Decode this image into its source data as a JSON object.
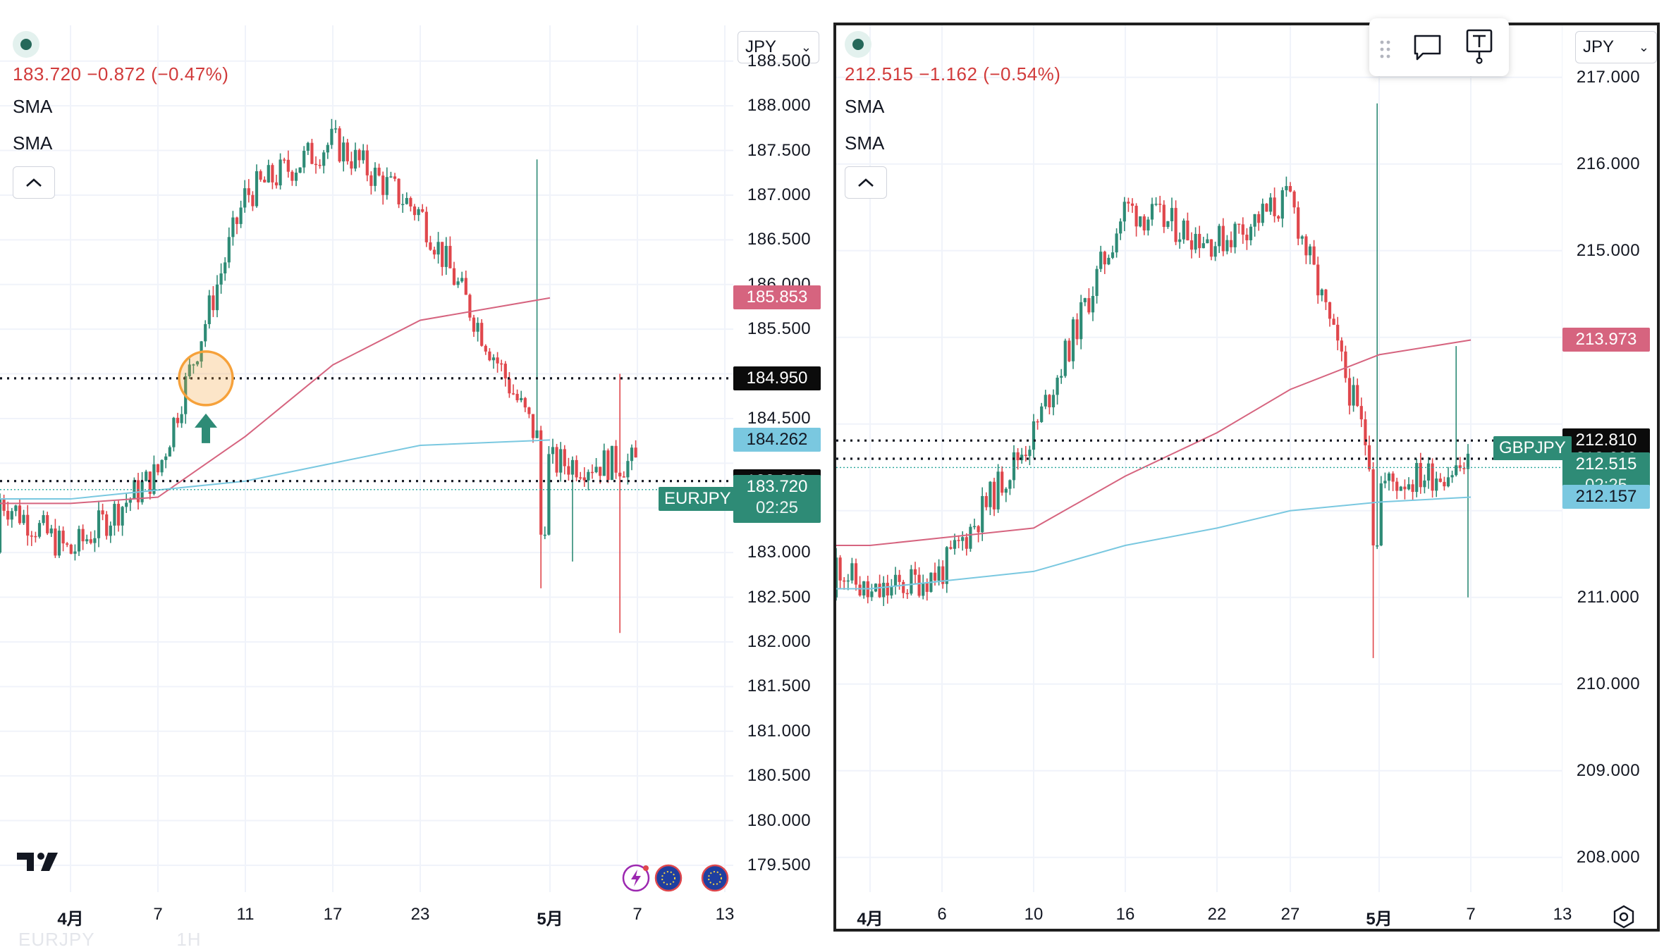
{
  "left": {
    "symbol": "EURJPY",
    "interval": "1H",
    "currency": "JPY",
    "last": "183.720",
    "change": "−0.872",
    "change_pct": "(−0.47%)",
    "indicators": [
      "SMA",
      "SMA"
    ],
    "countdown": "02:25",
    "price_ticks": [
      "188.500",
      "188.000",
      "187.500",
      "187.000",
      "186.500",
      "186.000",
      "185.500",
      "184.500",
      "183.000",
      "182.500",
      "182.000",
      "181.500",
      "181.000",
      "180.500",
      "180.000",
      "179.500"
    ],
    "badges": {
      "sma_red": "185.853",
      "line_black": "184.950",
      "sma_blue": "184.262",
      "line_black2": "183.800",
      "last": "183.720"
    },
    "time_labels": [
      {
        "text": "4月",
        "bold": true
      },
      {
        "text": "7",
        "bold": false
      },
      {
        "text": "11",
        "bold": false
      },
      {
        "text": "17",
        "bold": false
      },
      {
        "text": "23",
        "bold": false
      },
      {
        "text": "5月",
        "bold": true
      },
      {
        "text": "7",
        "bold": false
      },
      {
        "text": "13",
        "bold": false
      }
    ],
    "logo": "TV"
  },
  "right": {
    "symbol": "GBPJPY",
    "currency": "JPY",
    "last": "212.515",
    "change": "−1.162",
    "change_pct": "(−0.54%)",
    "indicators": [
      "SMA",
      "SMA"
    ],
    "countdown": "02:25",
    "price_ticks": [
      "217.000",
      "216.000",
      "215.000",
      "211.000",
      "210.000",
      "209.000",
      "208.000"
    ],
    "badges": {
      "sma_red": "213.973",
      "line_black": "212.810",
      "line_black2": "212.600",
      "last": "212.515",
      "sma_blue": "212.157"
    },
    "time_labels": [
      {
        "text": "4月",
        "bold": true
      },
      {
        "text": "6",
        "bold": false
      },
      {
        "text": "10",
        "bold": false
      },
      {
        "text": "16",
        "bold": false
      },
      {
        "text": "22",
        "bold": false
      },
      {
        "text": "27",
        "bold": false
      },
      {
        "text": "5月",
        "bold": true
      },
      {
        "text": "7",
        "bold": false
      },
      {
        "text": "13",
        "bold": false
      }
    ]
  },
  "colors": {
    "up": "#26a69a",
    "up_body": "#2e8b76",
    "down": "#e0474c",
    "sma_red": "#d6647f",
    "sma_blue": "#7ac8e0",
    "quote_red": "#d13b3b",
    "black_badge": "#0b0b0b",
    "highlight": "#f6a13a"
  },
  "chart_data": [
    {
      "type": "candlestick",
      "title": "EURJPY",
      "interval": "1H",
      "ylim": [
        179.2,
        188.9
      ],
      "x_labels": [
        "4月",
        "7",
        "11",
        "17",
        "23",
        "5月",
        "7",
        "13"
      ],
      "last": 183.72,
      "horizontal_lines": [
        184.95,
        183.8
      ],
      "sma_series": [
        {
          "color": "red",
          "x": [
            "4月",
            "7",
            "11",
            "17",
            "23",
            "5月"
          ],
          "values": [
            183.55,
            183.62,
            184.3,
            185.1,
            185.6,
            185.85
          ]
        },
        {
          "color": "blue",
          "x": [
            "4月",
            "7",
            "11",
            "17",
            "23",
            "5月"
          ],
          "values": [
            183.6,
            183.7,
            183.8,
            184.0,
            184.2,
            184.26
          ]
        }
      ],
      "price_path": {
        "x": [
          "4月",
          "7",
          "11",
          "17",
          "23",
          "5月",
          "7"
        ],
        "close": [
          183.0,
          183.9,
          187.0,
          187.6,
          186.8,
          184.0,
          183.72
        ]
      }
    },
    {
      "type": "candlestick",
      "title": "GBPJPY",
      "ylim": [
        207.6,
        217.6
      ],
      "x_labels": [
        "4月",
        "6",
        "10",
        "16",
        "22",
        "27",
        "5月",
        "7",
        "13"
      ],
      "last": 212.515,
      "horizontal_lines": [
        212.81,
        212.6
      ],
      "sma_series": [
        {
          "color": "red",
          "x": [
            "4月",
            "10",
            "16",
            "22",
            "27",
            "5月",
            "7"
          ],
          "values": [
            211.6,
            211.8,
            212.4,
            212.9,
            213.4,
            213.8,
            213.97
          ]
        },
        {
          "color": "blue",
          "x": [
            "4月",
            "10",
            "16",
            "22",
            "27",
            "5月",
            "7"
          ],
          "values": [
            211.1,
            211.3,
            211.6,
            211.8,
            212.0,
            212.1,
            212.157
          ]
        }
      ],
      "price_path": {
        "x": [
          "4月",
          "6",
          "10",
          "16",
          "22",
          "27",
          "5月",
          "7"
        ],
        "close": [
          211.0,
          211.3,
          212.9,
          215.5,
          215.1,
          215.6,
          212.3,
          212.515
        ]
      }
    }
  ]
}
